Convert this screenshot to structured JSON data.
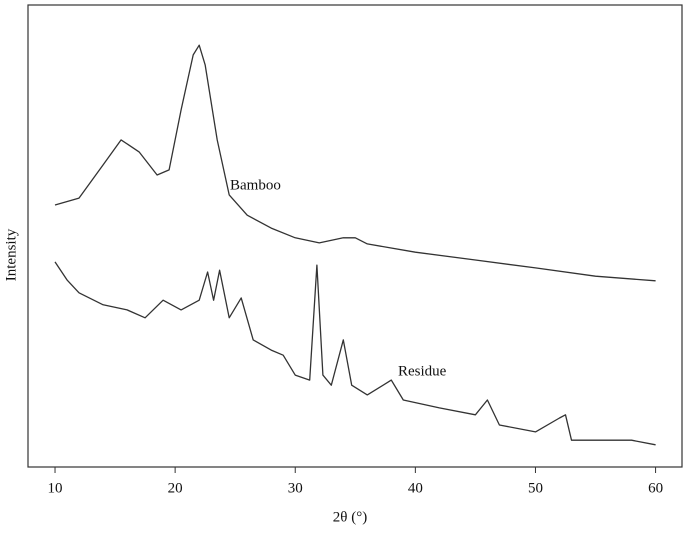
{
  "chart_data": {
    "type": "line",
    "x_label": "2θ (°)",
    "y_label": "Intensity",
    "xlim": [
      7.75,
      62.2
    ],
    "ylim": [
      0,
      100
    ],
    "xticks": [
      10,
      20,
      30,
      40,
      50,
      60
    ],
    "annotations": [
      "Bamboo",
      "Residue"
    ],
    "series": [
      {
        "name": "Bamboo",
        "color": "#333333",
        "x": [
          10,
          12,
          14,
          15.5,
          17,
          18.5,
          19.5,
          20.5,
          21.5,
          22,
          22.5,
          23.5,
          24.5,
          26,
          28,
          30,
          32,
          34,
          35,
          36,
          40,
          45,
          50,
          55,
          60
        ],
        "values": [
          56.7,
          58.2,
          65.4,
          70.8,
          68.2,
          63.2,
          64.3,
          77.3,
          89.2,
          91.3,
          87.0,
          70.8,
          58.9,
          54.5,
          51.7,
          49.6,
          48.5,
          49.6,
          49.6,
          48.3,
          46.5,
          44.8,
          43.1,
          41.3,
          40.3
        ]
      },
      {
        "name": "Residue",
        "color": "#333333",
        "x": [
          10,
          11,
          12,
          14,
          16,
          17.5,
          19,
          20.5,
          22,
          22.7,
          23.2,
          23.7,
          24.5,
          25.5,
          26.5,
          28,
          29,
          30,
          31.2,
          31.8,
          32.3,
          33,
          34,
          34.7,
          36,
          38,
          39,
          42,
          45,
          46,
          47,
          50,
          52,
          52.5,
          53,
          55,
          58,
          60
        ],
        "values": [
          44.4,
          40.5,
          37.7,
          35.1,
          34.0,
          32.3,
          36.1,
          34.0,
          36.1,
          42.2,
          36.1,
          42.6,
          32.3,
          36.6,
          27.5,
          25.3,
          24.2,
          19.9,
          18.8,
          43.7,
          19.9,
          17.7,
          27.5,
          17.7,
          15.6,
          18.8,
          14.5,
          12.8,
          11.3,
          14.5,
          9.1,
          7.6,
          10.6,
          11.3,
          5.8,
          5.8,
          5.8,
          4.8
        ]
      }
    ]
  }
}
